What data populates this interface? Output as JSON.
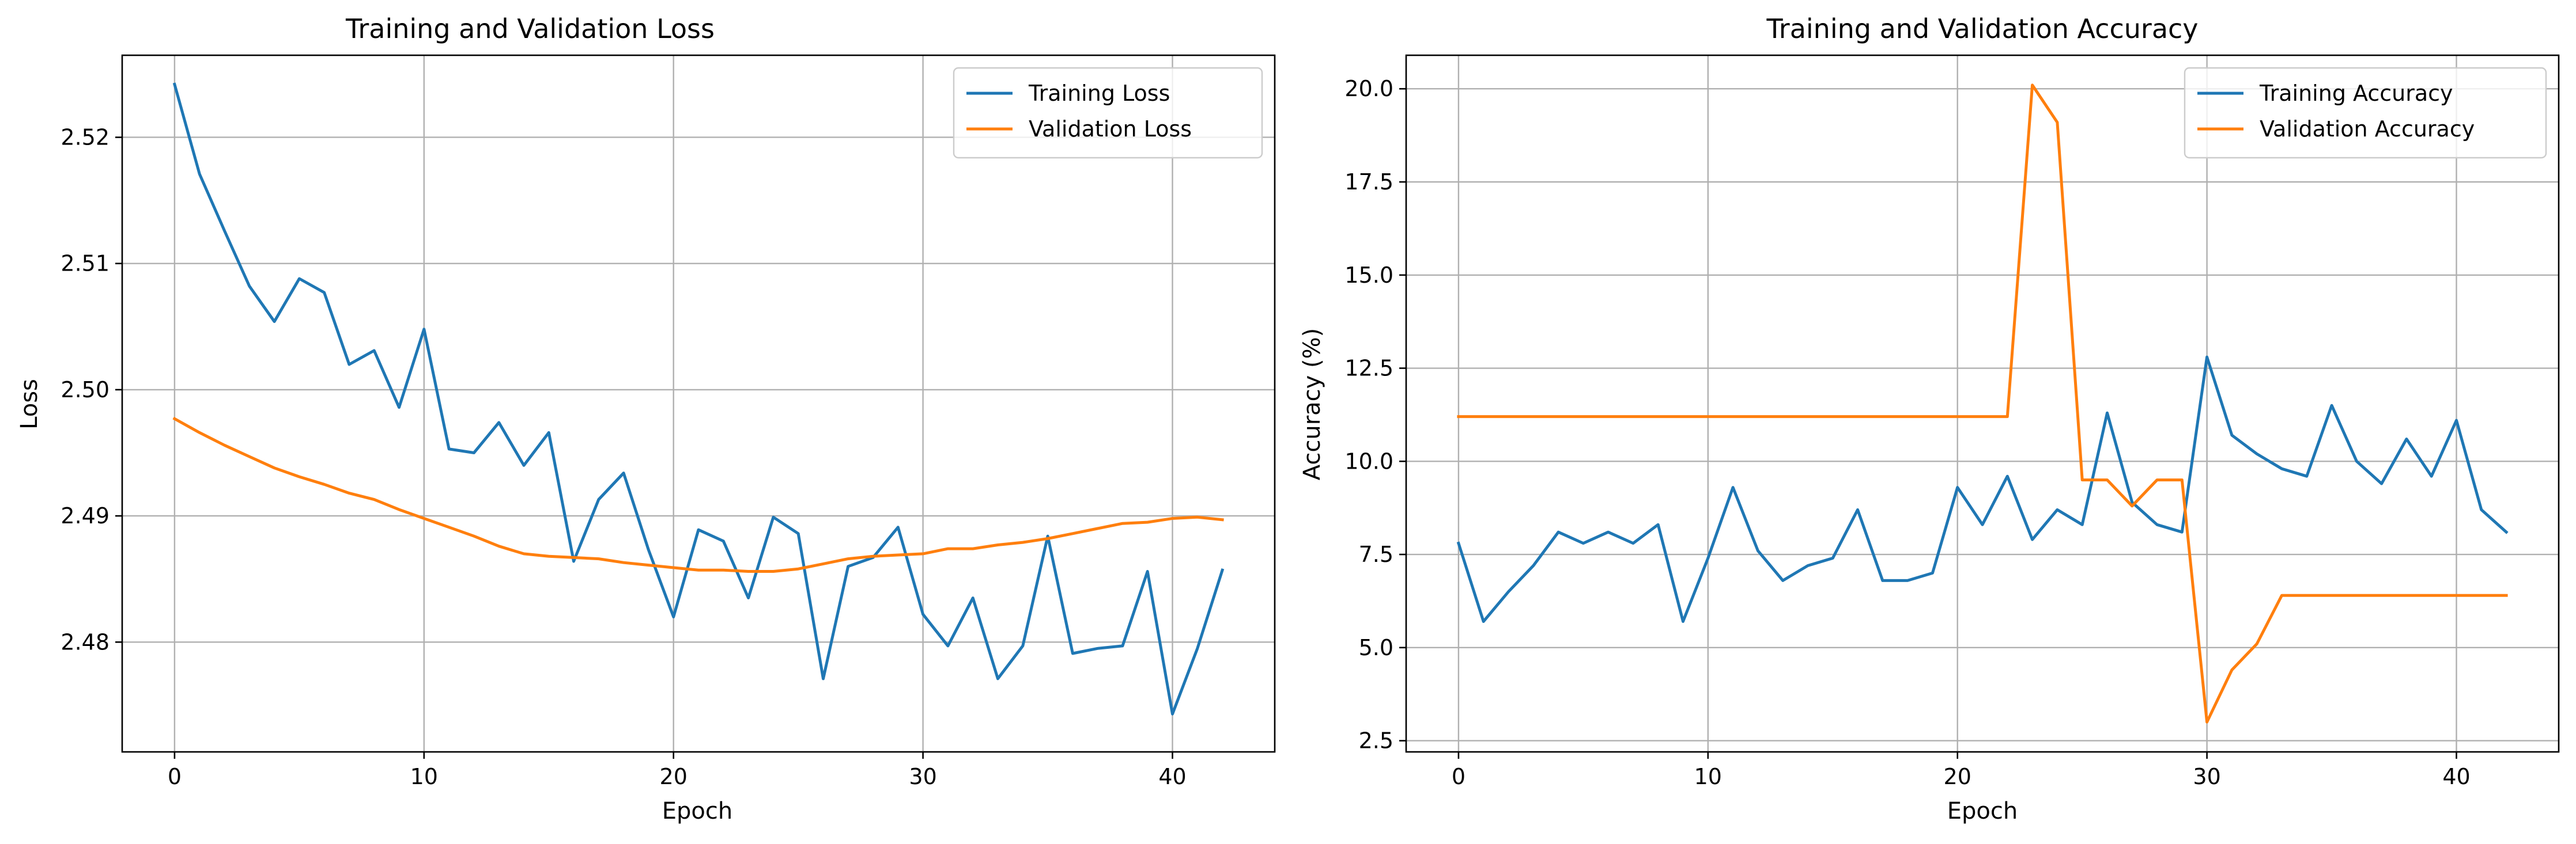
{
  "colors": {
    "blue": "#1f77b4",
    "orange": "#ff7f0e"
  },
  "chart_data": [
    {
      "type": "line",
      "title": "Training and Validation Loss",
      "xlabel": "Epoch",
      "ylabel": "Loss",
      "xlim": [
        -2.1,
        44.1
      ],
      "ylim": [
        2.4713,
        2.5265
      ],
      "xticks": [
        0,
        10,
        20,
        30,
        40
      ],
      "yticks": [
        2.48,
        2.49,
        2.5,
        2.51,
        2.52
      ],
      "ytick_labels": [
        "2.48",
        "2.49",
        "2.50",
        "2.51",
        "2.52"
      ],
      "grid": true,
      "legend_position": "top-right",
      "x": [
        0,
        1,
        2,
        3,
        4,
        5,
        6,
        7,
        8,
        9,
        10,
        11,
        12,
        13,
        14,
        15,
        16,
        17,
        18,
        19,
        20,
        21,
        22,
        23,
        24,
        25,
        26,
        27,
        28,
        29,
        30,
        31,
        32,
        33,
        34,
        35,
        36,
        37,
        38,
        39,
        40,
        41,
        42
      ],
      "series": [
        {
          "name": "Training Loss",
          "color": "#1f77b4",
          "values": [
            2.5242,
            2.5171,
            2.5126,
            2.5082,
            2.5054,
            2.5088,
            2.5077,
            2.502,
            2.5031,
            2.4986,
            2.5048,
            2.4953,
            2.495,
            2.4974,
            2.494,
            2.4966,
            2.4864,
            2.4913,
            2.4934,
            2.4873,
            2.482,
            2.4889,
            2.488,
            2.4835,
            2.4899,
            2.4886,
            2.4771,
            2.486,
            2.4867,
            2.4891,
            2.4822,
            2.4797,
            2.4835,
            2.4771,
            2.4797,
            2.4884,
            2.4791,
            2.4795,
            2.4797,
            2.4856,
            2.4743,
            2.4795,
            2.4857
          ]
        },
        {
          "name": "Validation Loss",
          "color": "#ff7f0e",
          "values": [
            2.4977,
            2.4966,
            2.4956,
            2.4947,
            2.4938,
            2.4931,
            2.4925,
            2.4918,
            2.4913,
            2.4905,
            2.4898,
            2.4891,
            2.4884,
            2.4876,
            2.487,
            2.4868,
            2.4867,
            2.4866,
            2.4863,
            2.4861,
            2.4859,
            2.4857,
            2.4857,
            2.4856,
            2.4856,
            2.4858,
            2.4862,
            2.4866,
            2.4868,
            2.4869,
            2.487,
            2.4874,
            2.4874,
            2.4877,
            2.4879,
            2.4882,
            2.4886,
            2.489,
            2.4894,
            2.4895,
            2.4898,
            2.4899,
            2.4897
          ]
        }
      ]
    },
    {
      "type": "line",
      "title": "Training and Validation Accuracy",
      "xlabel": "Epoch",
      "ylabel": "Accuracy (%)",
      "xlim": [
        -2.1,
        44.1
      ],
      "ylim": [
        2.2,
        20.9
      ],
      "xticks": [
        0,
        10,
        20,
        30,
        40
      ],
      "yticks": [
        2.5,
        5.0,
        7.5,
        10.0,
        12.5,
        15.0,
        17.5,
        20.0
      ],
      "ytick_labels": [
        "2.5",
        "5.0",
        "7.5",
        "10.0",
        "12.5",
        "15.0",
        "17.5",
        "20.0"
      ],
      "grid": true,
      "legend_position": "top-right",
      "x": [
        0,
        1,
        2,
        3,
        4,
        5,
        6,
        7,
        8,
        9,
        10,
        11,
        12,
        13,
        14,
        15,
        16,
        17,
        18,
        19,
        20,
        21,
        22,
        23,
        24,
        25,
        26,
        27,
        28,
        29,
        30,
        31,
        32,
        33,
        34,
        35,
        36,
        37,
        38,
        39,
        40,
        41,
        42
      ],
      "series": [
        {
          "name": "Training Accuracy",
          "color": "#1f77b4",
          "values": [
            7.8,
            5.7,
            6.5,
            7.2,
            8.1,
            7.8,
            8.1,
            7.8,
            8.3,
            5.7,
            7.4,
            9.3,
            7.6,
            6.8,
            7.2,
            7.4,
            8.7,
            6.8,
            6.8,
            7.0,
            9.3,
            8.3,
            9.6,
            7.9,
            8.7,
            8.3,
            11.3,
            8.9,
            8.3,
            8.1,
            12.8,
            10.7,
            10.2,
            9.8,
            9.6,
            11.5,
            10.0,
            9.4,
            10.6,
            9.6,
            11.1,
            8.7,
            8.1
          ]
        },
        {
          "name": "Validation Accuracy",
          "color": "#ff7f0e",
          "values": [
            11.2,
            11.2,
            11.2,
            11.2,
            11.2,
            11.2,
            11.2,
            11.2,
            11.2,
            11.2,
            11.2,
            11.2,
            11.2,
            11.2,
            11.2,
            11.2,
            11.2,
            11.2,
            11.2,
            11.2,
            11.2,
            11.2,
            11.2,
            20.1,
            19.1,
            9.5,
            9.5,
            8.8,
            9.5,
            9.5,
            3.0,
            4.4,
            5.1,
            6.4,
            6.4,
            6.4,
            6.4,
            6.4,
            6.4,
            6.4,
            6.4,
            6.4,
            6.4
          ]
        }
      ]
    }
  ]
}
